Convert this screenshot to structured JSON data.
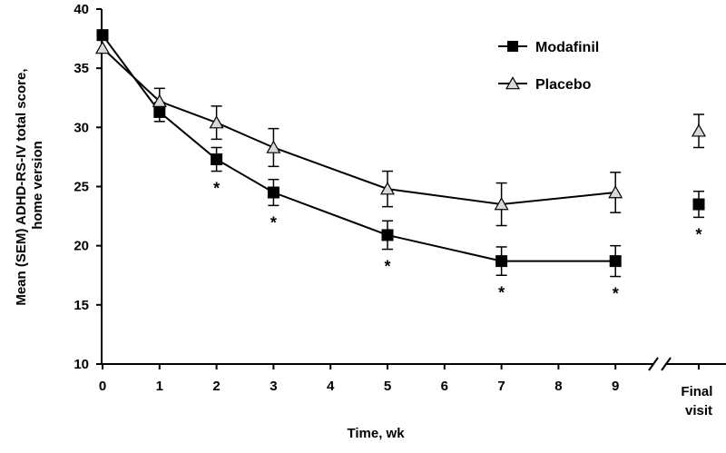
{
  "chart_data": {
    "type": "line",
    "xlabel": "Time, wk",
    "ylabel_lines": [
      "Mean (SEM) ADHD-RS-IV  total score,",
      "home version"
    ],
    "ylim": [
      10,
      40
    ],
    "yticks": [
      "10",
      "15",
      "20",
      "25",
      "30",
      "35",
      "40"
    ],
    "xticks": [
      "0",
      "1",
      "2",
      "3",
      "4",
      "5",
      "6",
      "7",
      "8",
      "9"
    ],
    "final_label_lines": [
      "Final",
      "visit"
    ],
    "axis_break": true,
    "grid": false,
    "legend_position": "top-right",
    "series": [
      {
        "name": "Modafinil",
        "marker": "square",
        "color": "#000000",
        "points": [
          {
            "x": 0,
            "y": 37.8,
            "err": 0
          },
          {
            "x": 1,
            "y": 31.3,
            "err": 0.8
          },
          {
            "x": 2,
            "y": 27.3,
            "err": 1.0
          },
          {
            "x": 3,
            "y": 24.5,
            "err": 1.1
          },
          {
            "x": 5,
            "y": 20.9,
            "err": 1.2
          },
          {
            "x": 7,
            "y": 18.7,
            "err": 1.2
          },
          {
            "x": 9,
            "y": 18.7,
            "err": 1.3
          }
        ],
        "final": {
          "y": 23.5,
          "err": 1.1
        }
      },
      {
        "name": "Placebo",
        "marker": "triangle",
        "color": "#d9d9d9",
        "points": [
          {
            "x": 0,
            "y": 36.7,
            "err": 0
          },
          {
            "x": 1,
            "y": 32.2,
            "err": 1.1
          },
          {
            "x": 2,
            "y": 30.4,
            "err": 1.4
          },
          {
            "x": 3,
            "y": 28.3,
            "err": 1.6
          },
          {
            "x": 5,
            "y": 24.8,
            "err": 1.5
          },
          {
            "x": 7,
            "y": 23.5,
            "err": 1.8
          },
          {
            "x": 9,
            "y": 24.5,
            "err": 1.7
          }
        ],
        "final": {
          "y": 29.7,
          "err": 1.4
        }
      }
    ],
    "significance": {
      "symbol": "*",
      "x": [
        2,
        3,
        5,
        7,
        9
      ],
      "final": true
    }
  }
}
